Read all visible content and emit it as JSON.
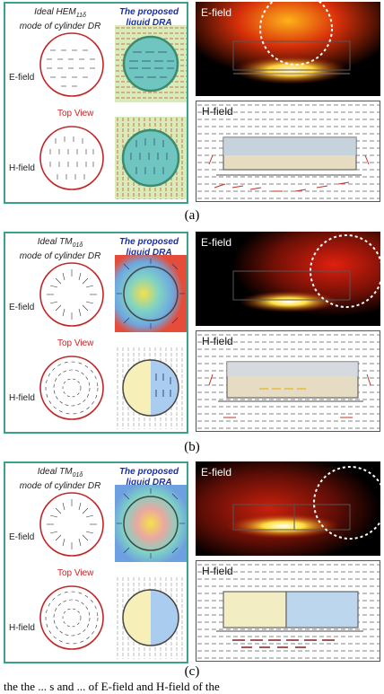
{
  "panels": [
    {
      "ideal_title_line1": "Ideal HEM",
      "ideal_mode_sub": "11δ",
      "ideal_title_line2": "mode of cylinder DR",
      "proposed_title": "The proposed liquid DRA",
      "efield_row_label": "E-field",
      "hfield_row_label": "H-field",
      "top_view": "Top View",
      "efield_label": "E-field",
      "hfield_label": "H-field",
      "caption": "(a)"
    },
    {
      "ideal_title_line1": "Ideal TM",
      "ideal_mode_sub": "01δ",
      "ideal_title_line2": "mode of cylinder DR",
      "proposed_title": "The proposed liquid DRA",
      "efield_row_label": "E-field",
      "hfield_row_label": "H-field",
      "top_view": "Top View",
      "efield_label": "E-field",
      "hfield_label": "H-field",
      "caption": "(b)"
    },
    {
      "ideal_title_line1": "Ideal TM",
      "ideal_mode_sub": "01δ",
      "ideal_title_line2": "mode of cylinder DR",
      "proposed_title": "The proposed liquid DRA",
      "efield_row_label": "E-field",
      "hfield_row_label": "H-field",
      "top_view": "Top View",
      "efield_label": "E-field",
      "hfield_label": "H-field",
      "caption": "(c)"
    }
  ],
  "bottom_text": "the the ... s and ... of E-field and H-field of the",
  "colors": {
    "frame": "#3aa18f",
    "circle": "#c0282a",
    "proposed": "#1a2fa8",
    "topview": "#d42020"
  }
}
